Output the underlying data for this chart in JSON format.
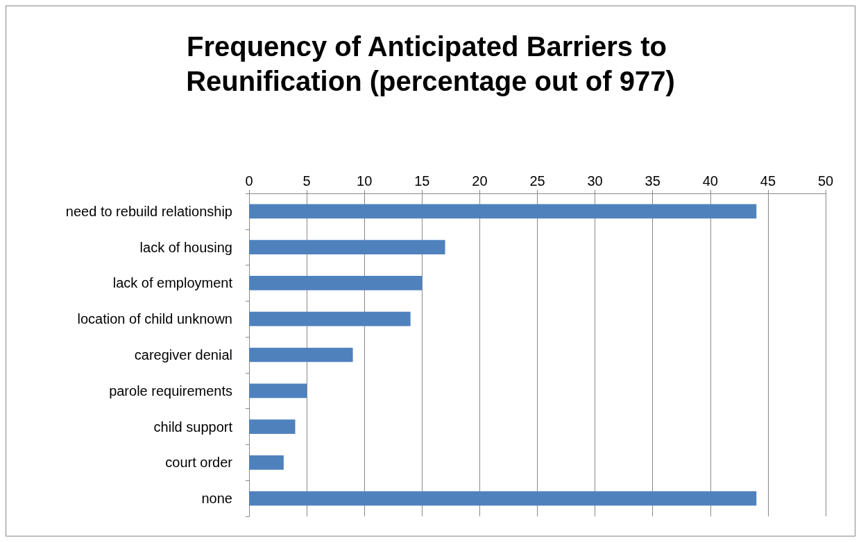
{
  "chart_data": {
    "type": "bar",
    "orientation": "horizontal",
    "title": "Frequency of Anticipated Barriers to Reunification (percentage out of 977)",
    "categories": [
      "need to rebuild relationship",
      "lack of housing",
      "lack of employment",
      "location of child unknown",
      "caregiver denial",
      "parole requirements",
      "child support",
      "court order",
      "none"
    ],
    "values": [
      44,
      17,
      15,
      14,
      9,
      5,
      4,
      3,
      44
    ],
    "color": "#4f81bd",
    "xlim": [
      0,
      50
    ],
    "xticks": [
      0,
      5,
      10,
      15,
      20,
      25,
      30,
      35,
      40,
      45,
      50
    ],
    "grid": "x"
  }
}
